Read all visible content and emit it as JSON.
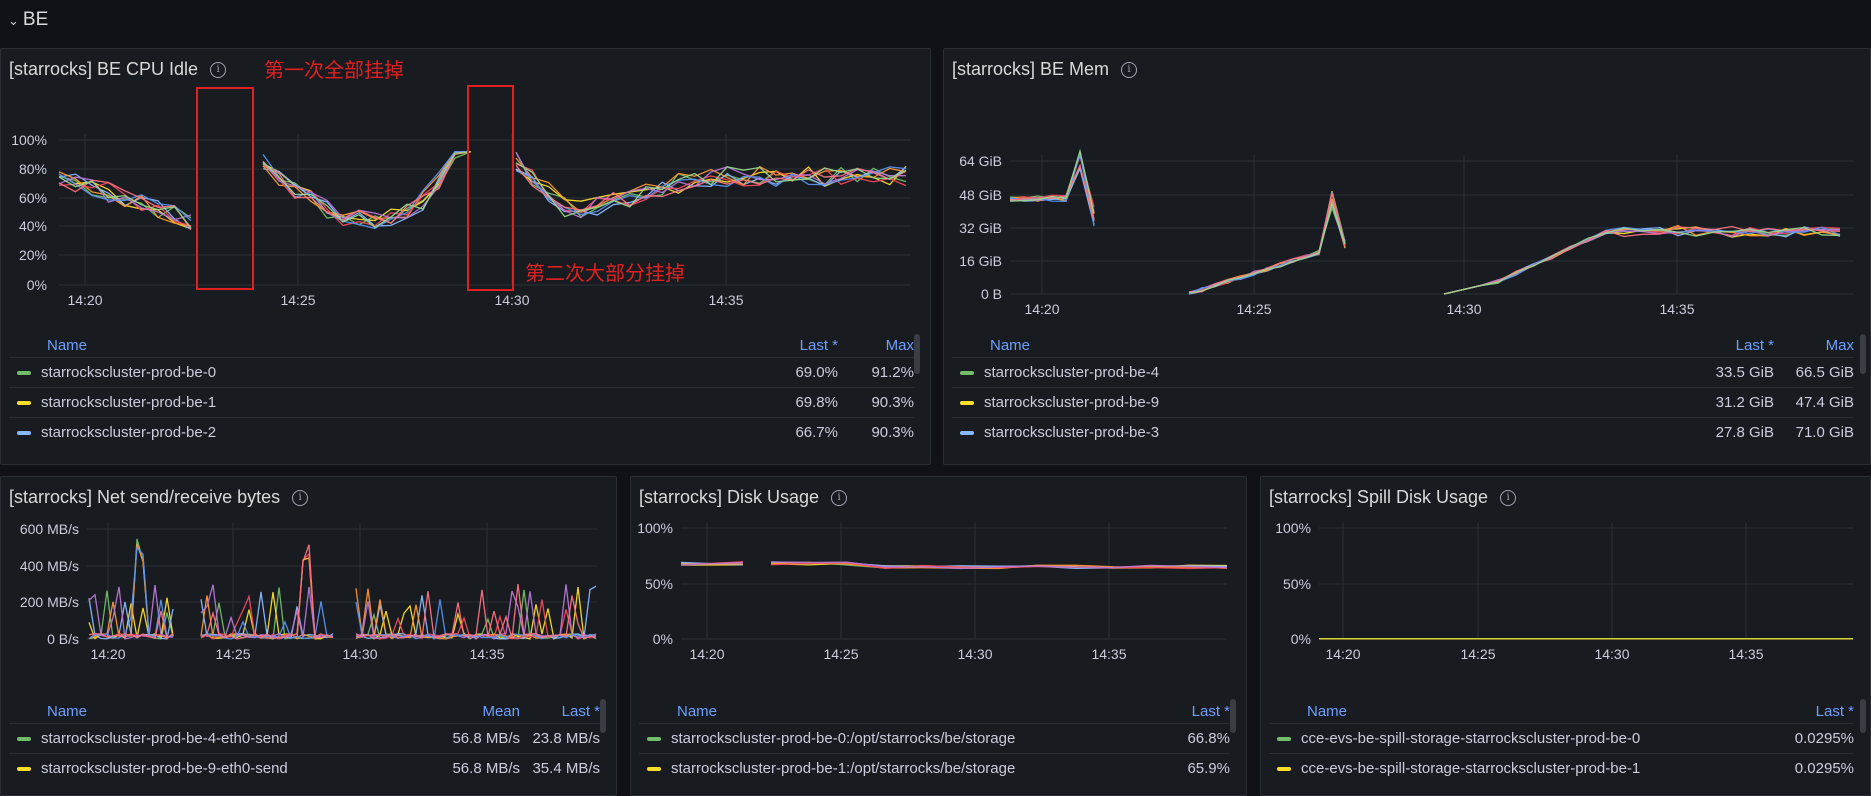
{
  "row": {
    "title": "BE",
    "chevron_icon": "chevron-down-icon"
  },
  "colors": {
    "green": "#73bf69",
    "yellow": "#fade2a",
    "blue": "#8ab8ff",
    "orange": "#ff9830",
    "red": "#f2495c",
    "purple": "#b877d9",
    "teal": "#5794f2",
    "pink": "#ff7383",
    "annotation": "#e02020"
  },
  "panels": {
    "cpu": {
      "title": "[starrocks] BE CPU Idle",
      "yaxis": [
        "100%",
        "80%",
        "60%",
        "40%",
        "20%",
        "0%"
      ],
      "xaxis": [
        "14:20",
        "14:25",
        "14:30",
        "14:35"
      ],
      "annotations": [
        "第一次全部挂掉",
        "第二次大部分挂掉"
      ],
      "legend": {
        "headers": [
          "Name",
          "Last *",
          "Max"
        ],
        "rows": [
          {
            "name": "starrockscluster-prod-be-0",
            "color": "#73bf69",
            "v1": "69.0%",
            "v2": "91.2%"
          },
          {
            "name": "starrockscluster-prod-be-1",
            "color": "#fade2a",
            "v1": "69.8%",
            "v2": "90.3%"
          },
          {
            "name": "starrockscluster-prod-be-2",
            "color": "#8ab8ff",
            "v1": "66.7%",
            "v2": "90.3%"
          }
        ]
      }
    },
    "mem": {
      "title": "[starrocks] BE Mem",
      "yaxis": [
        "64 GiB",
        "48 GiB",
        "32 GiB",
        "16 GiB",
        "0 B"
      ],
      "xaxis": [
        "14:20",
        "14:25",
        "14:30",
        "14:35"
      ],
      "legend": {
        "headers": [
          "Name",
          "Last *",
          "Max"
        ],
        "rows": [
          {
            "name": "starrockscluster-prod-be-4",
            "color": "#73bf69",
            "v1": "33.5 GiB",
            "v2": "66.5 GiB"
          },
          {
            "name": "starrockscluster-prod-be-9",
            "color": "#fade2a",
            "v1": "31.2 GiB",
            "v2": "47.4 GiB"
          },
          {
            "name": "starrockscluster-prod-be-3",
            "color": "#8ab8ff",
            "v1": "27.8 GiB",
            "v2": "71.0 GiB"
          }
        ]
      }
    },
    "net": {
      "title": "[starrocks] Net send/receive bytes",
      "yaxis": [
        "600 MB/s",
        "400 MB/s",
        "200 MB/s",
        "0 B/s"
      ],
      "xaxis": [
        "14:20",
        "14:25",
        "14:30",
        "14:35"
      ],
      "legend": {
        "headers": [
          "Name",
          "Mean",
          "Last *"
        ],
        "rows": [
          {
            "name": "starrockscluster-prod-be-4-eth0-send",
            "color": "#73bf69",
            "v1": "56.8 MB/s",
            "v2": "23.8 MB/s"
          },
          {
            "name": "starrockscluster-prod-be-9-eth0-send",
            "color": "#fade2a",
            "v1": "56.8 MB/s",
            "v2": "35.4 MB/s"
          }
        ]
      }
    },
    "disk": {
      "title": "[starrocks] Disk Usage",
      "yaxis": [
        "100%",
        "50%",
        "0%"
      ],
      "xaxis": [
        "14:20",
        "14:25",
        "14:30",
        "14:35"
      ],
      "legend": {
        "headers": [
          "Name",
          "Last *"
        ],
        "rows": [
          {
            "name": "starrockscluster-prod-be-0:/opt/starrocks/be/storage",
            "color": "#73bf69",
            "v1": "66.8%"
          },
          {
            "name": "starrockscluster-prod-be-1:/opt/starrocks/be/storage",
            "color": "#fade2a",
            "v1": "65.9%"
          }
        ]
      }
    },
    "spill": {
      "title": "[starrocks] Spill Disk Usage",
      "yaxis": [
        "100%",
        "50%",
        "0%"
      ],
      "xaxis": [
        "14:20",
        "14:25",
        "14:30",
        "14:35"
      ],
      "legend": {
        "headers": [
          "Name",
          "Last *"
        ],
        "rows": [
          {
            "name": "cce-evs-be-spill-storage-starrockscluster-prod-be-0",
            "color": "#73bf69",
            "v1": "0.0295%"
          },
          {
            "name": "cce-evs-be-spill-storage-starrockscluster-prod-be-1",
            "color": "#fade2a",
            "v1": "0.0295%"
          }
        ]
      }
    }
  }
}
